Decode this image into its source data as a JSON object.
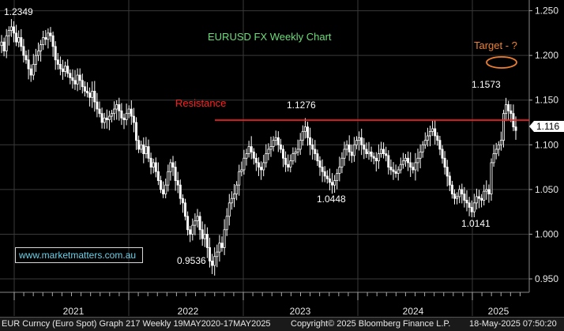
{
  "chart_data": {
    "type": "candlestick",
    "title": "EURUSD FX Weekly Chart",
    "y_ticks": [
      "1.250",
      "1.200",
      "1.150",
      "1.100",
      "1.050",
      "1.000",
      "0.950"
    ],
    "ylim": [
      0.935,
      1.262
    ],
    "x_ticks": [
      "2021",
      "2022",
      "2023",
      "2024",
      "2025"
    ],
    "last_price": "1.116",
    "resistance": {
      "label": "Resistance",
      "value": 1.1276
    },
    "target_label": "Target - ?",
    "annotations": [
      "1.2349",
      "1.1276",
      "1.0448",
      "0.9536",
      "1.0141",
      "1.1573"
    ],
    "weekly_closes": [
      1.215,
      1.205,
      1.222,
      1.228,
      1.232,
      1.225,
      1.215,
      1.22,
      1.21,
      1.2,
      1.195,
      1.185,
      1.178,
      1.19,
      1.2,
      1.205,
      1.212,
      1.22,
      1.218,
      1.225,
      1.222,
      1.21,
      1.195,
      1.19,
      1.185,
      1.182,
      1.188,
      1.18,
      1.175,
      1.172,
      1.168,
      1.178,
      1.172,
      1.165,
      1.16,
      1.158,
      1.153,
      1.16,
      1.148,
      1.14,
      1.135,
      1.125,
      1.13,
      1.128,
      1.132,
      1.135,
      1.14,
      1.145,
      1.138,
      1.13,
      1.128,
      1.135,
      1.14,
      1.132,
      1.125,
      1.105,
      1.095,
      1.1,
      1.09,
      1.098,
      1.085,
      1.075,
      1.08,
      1.07,
      1.06,
      1.05,
      1.045,
      1.055,
      1.07,
      1.08,
      1.075,
      1.06,
      1.055,
      1.04,
      1.035,
      1.02,
      1.005,
      1.0,
      1.01,
      1.015,
      1.02,
      1.005,
      0.995,
      1.0,
      0.985,
      0.97,
      0.965,
      0.975,
      0.98,
      0.99,
      0.985,
      1.005,
      1.02,
      1.035,
      1.04,
      1.045,
      1.055,
      1.07,
      1.072,
      1.085,
      1.09,
      1.098,
      1.092,
      1.085,
      1.08,
      1.075,
      1.072,
      1.08,
      1.09,
      1.095,
      1.098,
      1.105,
      1.108,
      1.1,
      1.095,
      1.085,
      1.078,
      1.075,
      1.082,
      1.09,
      1.092,
      1.095,
      1.105,
      1.115,
      1.12,
      1.108,
      1.1,
      1.095,
      1.09,
      1.082,
      1.075,
      1.07,
      1.065,
      1.062,
      1.058,
      1.055,
      1.06,
      1.068,
      1.075,
      1.085,
      1.095,
      1.1,
      1.092,
      1.088,
      1.1,
      1.105,
      1.108,
      1.1,
      1.095,
      1.09,
      1.092,
      1.087,
      1.085,
      1.082,
      1.09,
      1.095,
      1.09,
      1.088,
      1.075,
      1.072,
      1.07,
      1.068,
      1.072,
      1.078,
      1.082,
      1.085,
      1.08,
      1.075,
      1.072,
      1.08,
      1.085,
      1.092,
      1.1,
      1.105,
      1.11,
      1.115,
      1.118,
      1.11,
      1.105,
      1.095,
      1.085,
      1.075,
      1.065,
      1.055,
      1.045,
      1.04,
      1.042,
      1.05,
      1.045,
      1.038,
      1.035,
      1.03,
      1.025,
      1.035,
      1.042,
      1.04,
      1.038,
      1.048,
      1.05,
      1.045,
      1.08,
      1.09,
      1.095,
      1.1,
      1.105,
      1.135,
      1.145,
      1.138,
      1.135,
      1.12,
      1.116
    ]
  },
  "footer": {
    "left": "EUR Curncy (Euro Spot) Graph 217  Weekly 19MAY2020-17MAY2025",
    "middle": "Copyright© 2025 Bloomberg Finance L.P.",
    "right": "18-May-2025 07:50:20"
  },
  "website": "www.marketmatters.com.au",
  "colors": {
    "background": "#000000",
    "candle": "#ffffff",
    "resistance_line": "#ff2020",
    "title": "#6ddc7a",
    "target": "#f08030",
    "url": "#6ad0e8"
  }
}
